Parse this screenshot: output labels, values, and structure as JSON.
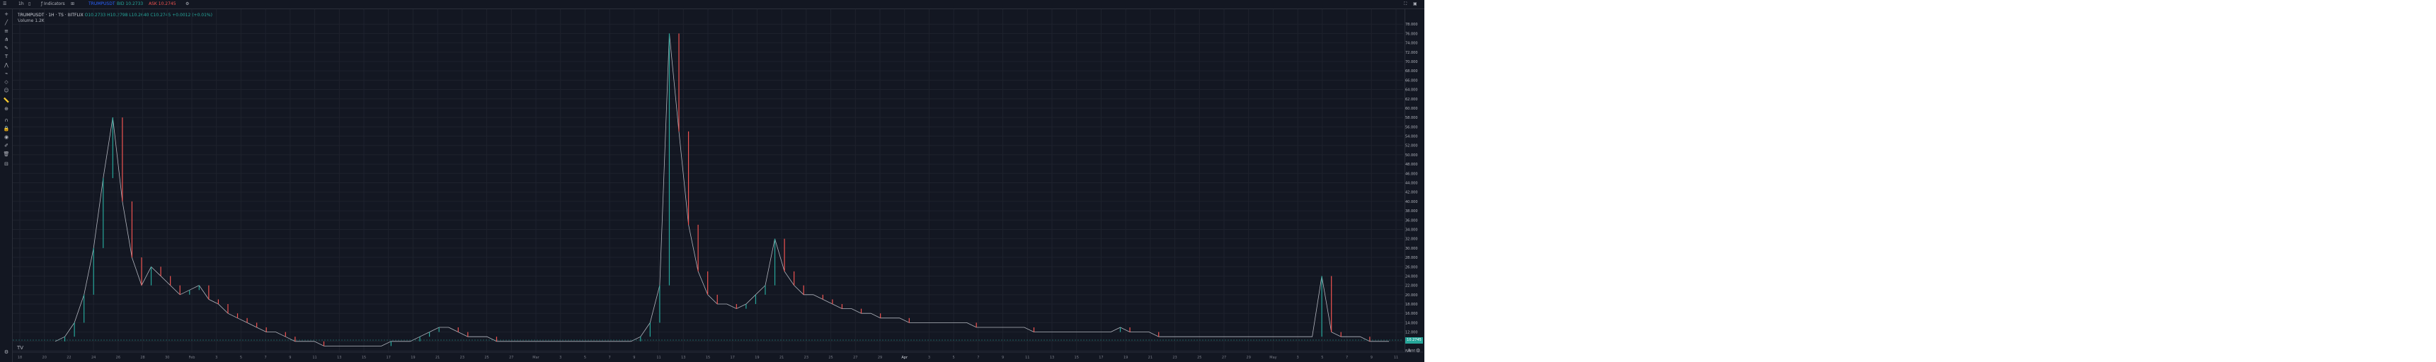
{
  "toolbar": {
    "interval": "1h",
    "indicators_label": "Indicators",
    "symbol": "TRUMPUSDT",
    "bid": "BID 10.2733",
    "ask": "ASK 10.2745",
    "buy_label": "BUY",
    "sell_label": "SELL"
  },
  "legend": {
    "symbol_line": "TRUMPUSDT · 1H · TS · BITFLIX",
    "ohlc": "O10.2733 H10.2798 L10.2640 C10.2745 +0.0012 (+0.01%)",
    "volume": "Volume 1.2K"
  },
  "price_axis": {
    "labels": [
      "78.000",
      "76.000",
      "74.000",
      "72.000",
      "70.000",
      "68.000",
      "66.000",
      "64.000",
      "62.000",
      "60.000",
      "58.000",
      "56.000",
      "54.000",
      "52.000",
      "50.000",
      "48.000",
      "46.000",
      "44.000",
      "42.000",
      "40.000",
      "38.000",
      "36.000",
      "34.000",
      "32.000",
      "30.000",
      "28.000",
      "26.000",
      "24.000",
      "22.000",
      "20.000",
      "18.000",
      "16.000",
      "14.000",
      "12.000",
      "10.000",
      "8.000"
    ],
    "current_price": "10.2745"
  },
  "time_axis": {
    "labels": [
      "18",
      "20",
      "22",
      "24",
      "26",
      "28",
      "30",
      "Feb",
      "3",
      "5",
      "7",
      "9",
      "11",
      "13",
      "15",
      "17",
      "19",
      "21",
      "23",
      "25",
      "27",
      "Mar",
      "3",
      "5",
      "7",
      "9",
      "11",
      "13",
      "15",
      "17",
      "19",
      "21",
      "23",
      "25",
      "27",
      "29",
      "Apr",
      "3",
      "5",
      "7",
      "9",
      "11",
      "13",
      "15",
      "17",
      "19",
      "21",
      "23",
      "25",
      "27",
      "29",
      "May",
      "3",
      "5",
      "7",
      "9",
      "11"
    ],
    "highlight": "Apr"
  },
  "chart_data": {
    "type": "line",
    "title": "",
    "xlabel": "",
    "ylabel": "",
    "ylim": [
      8,
      80
    ],
    "series": [
      {
        "values": [
          10,
          11,
          14,
          20,
          30,
          45,
          58,
          40,
          28,
          22,
          26,
          24,
          22,
          20,
          21,
          22,
          19,
          18,
          16,
          15,
          14,
          13,
          12,
          12,
          11,
          10,
          10,
          10,
          9,
          9,
          9,
          9,
          9,
          9,
          9,
          10,
          10,
          10,
          11,
          12,
          13,
          13,
          12,
          11,
          11,
          11,
          10,
          10,
          10,
          10,
          10,
          10,
          10,
          10,
          10,
          10,
          10,
          10,
          10,
          10,
          10,
          11,
          14,
          22,
          76,
          55,
          35,
          25,
          20,
          18,
          18,
          17,
          18,
          20,
          22,
          32,
          25,
          22,
          20,
          20,
          19,
          18,
          17,
          17,
          16,
          16,
          15,
          15,
          15,
          14,
          14,
          14,
          14,
          14,
          14,
          14,
          13,
          13,
          13,
          13,
          13,
          13,
          12,
          12,
          12,
          12,
          12,
          12,
          12,
          12,
          12,
          13,
          12,
          12,
          12,
          11,
          11,
          11,
          11,
          11,
          11,
          11,
          11,
          11,
          11,
          11,
          11,
          11,
          11,
          11,
          11,
          11,
          24,
          12,
          11,
          11,
          11,
          10,
          10,
          10
        ]
      }
    ],
    "current_price": 10.2745
  }
}
